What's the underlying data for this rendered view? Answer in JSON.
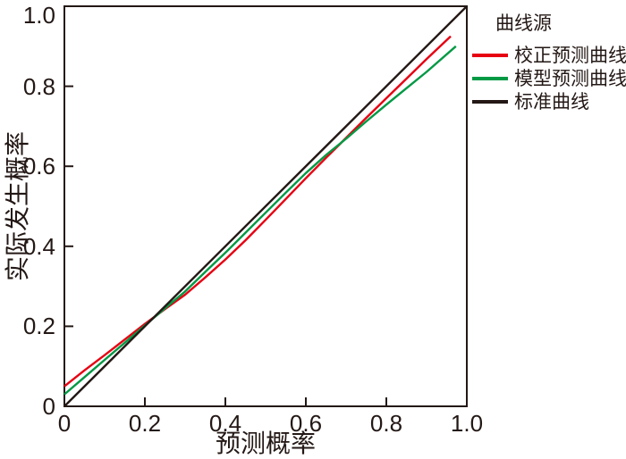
{
  "figure": {
    "background": "#ffffff",
    "frame_color": "#231815",
    "text_color": "#231815"
  },
  "chart_data": {
    "type": "line",
    "title": "",
    "xlabel": "预测概率",
    "ylabel": "实际发生概率",
    "xlim": [
      0,
      1.0
    ],
    "ylim": [
      0,
      1.0
    ],
    "x_ticks": [
      "0",
      "0.2",
      "0.4",
      "0.6",
      "0.8",
      "1.0"
    ],
    "y_ticks": [
      "0",
      "0.2",
      "0.4",
      "0.6",
      "0.8",
      "1.0"
    ],
    "grid": false,
    "legend": {
      "title": "曲线源",
      "position": "outside-top-right"
    },
    "series": [
      {
        "name": "校正预测曲线",
        "color": "#e60012",
        "points": [
          [
            0,
            0.05
          ],
          [
            0.05,
            0.09
          ],
          [
            0.1,
            0.128
          ],
          [
            0.15,
            0.167
          ],
          [
            0.2,
            0.206
          ],
          [
            0.25,
            0.243
          ],
          [
            0.3,
            0.279
          ],
          [
            0.35,
            0.322
          ],
          [
            0.4,
            0.367
          ],
          [
            0.45,
            0.415
          ],
          [
            0.5,
            0.466
          ],
          [
            0.55,
            0.518
          ],
          [
            0.6,
            0.57
          ],
          [
            0.65,
            0.621
          ],
          [
            0.7,
            0.671
          ],
          [
            0.75,
            0.721
          ],
          [
            0.8,
            0.77
          ],
          [
            0.85,
            0.819
          ],
          [
            0.9,
            0.868
          ],
          [
            0.96,
            0.925
          ]
        ]
      },
      {
        "name": "模型预测曲线",
        "color": "#009944",
        "points": [
          [
            0,
            0.03
          ],
          [
            0.05,
            0.073
          ],
          [
            0.1,
            0.116
          ],
          [
            0.15,
            0.159
          ],
          [
            0.2,
            0.202
          ],
          [
            0.25,
            0.245
          ],
          [
            0.3,
            0.287
          ],
          [
            0.35,
            0.336
          ],
          [
            0.4,
            0.384
          ],
          [
            0.45,
            0.434
          ],
          [
            0.5,
            0.484
          ],
          [
            0.55,
            0.534
          ],
          [
            0.6,
            0.583
          ],
          [
            0.65,
            0.628
          ],
          [
            0.7,
            0.669
          ],
          [
            0.75,
            0.712
          ],
          [
            0.8,
            0.754
          ],
          [
            0.85,
            0.795
          ],
          [
            0.9,
            0.836
          ],
          [
            0.973,
            0.9
          ]
        ]
      },
      {
        "name": "标准曲线",
        "color": "#231815",
        "points": [
          [
            0,
            0
          ],
          [
            1,
            1
          ]
        ]
      }
    ]
  }
}
